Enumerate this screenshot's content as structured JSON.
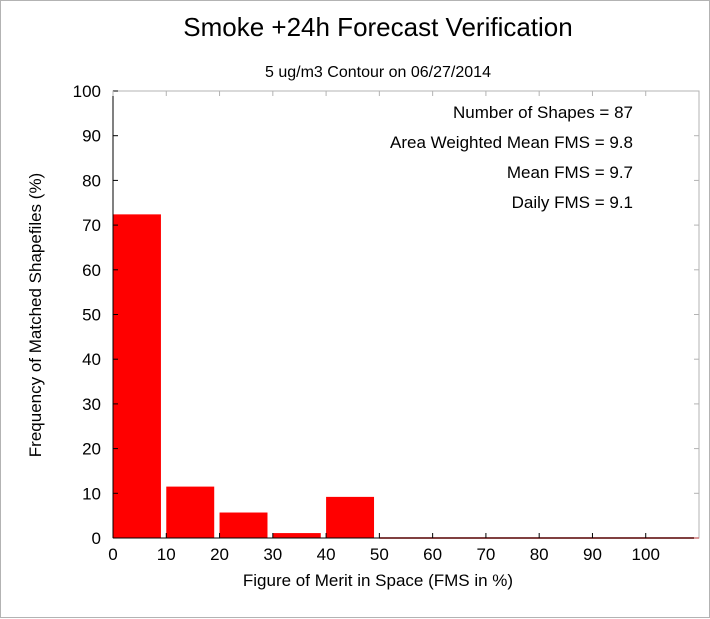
{
  "chart_data": {
    "type": "bar",
    "title": "Smoke +24h Forecast Verification",
    "subtitle": "5 ug/m3 Contour on 06/27/2014",
    "xlabel": "Figure of Merit in Space (FMS in %)",
    "ylabel": "Frequency of Matched Shapefiles (%)",
    "xlim": [
      0,
      110
    ],
    "ylim": [
      0,
      100
    ],
    "xticks": [
      "0",
      "10",
      "20",
      "30",
      "40",
      "50",
      "60",
      "70",
      "80",
      "90",
      "100"
    ],
    "yticks": [
      "0",
      "10",
      "20",
      "30",
      "40",
      "50",
      "60",
      "70",
      "80",
      "90",
      "100"
    ],
    "bins": [
      {
        "start": 0,
        "end": 9,
        "value": 72.4
      },
      {
        "start": 10,
        "end": 19,
        "value": 11.5
      },
      {
        "start": 20,
        "end": 29,
        "value": 5.7
      },
      {
        "start": 30,
        "end": 39,
        "value": 1.1
      },
      {
        "start": 40,
        "end": 49,
        "value": 9.2
      },
      {
        "start": 50,
        "end": 59,
        "value": 0
      },
      {
        "start": 60,
        "end": 69,
        "value": 0
      },
      {
        "start": 70,
        "end": 79,
        "value": 0
      },
      {
        "start": 80,
        "end": 89,
        "value": 0
      },
      {
        "start": 90,
        "end": 99,
        "value": 0
      },
      {
        "start": 100,
        "end": 109,
        "value": 0
      }
    ],
    "bar_color": "#ff0000",
    "annotations": [
      "Number of Shapes = 87",
      "Area Weighted Mean FMS = 9.8",
      "Mean FMS = 9.7",
      "Daily FMS = 9.1"
    ],
    "grid": false,
    "legend": "none"
  }
}
